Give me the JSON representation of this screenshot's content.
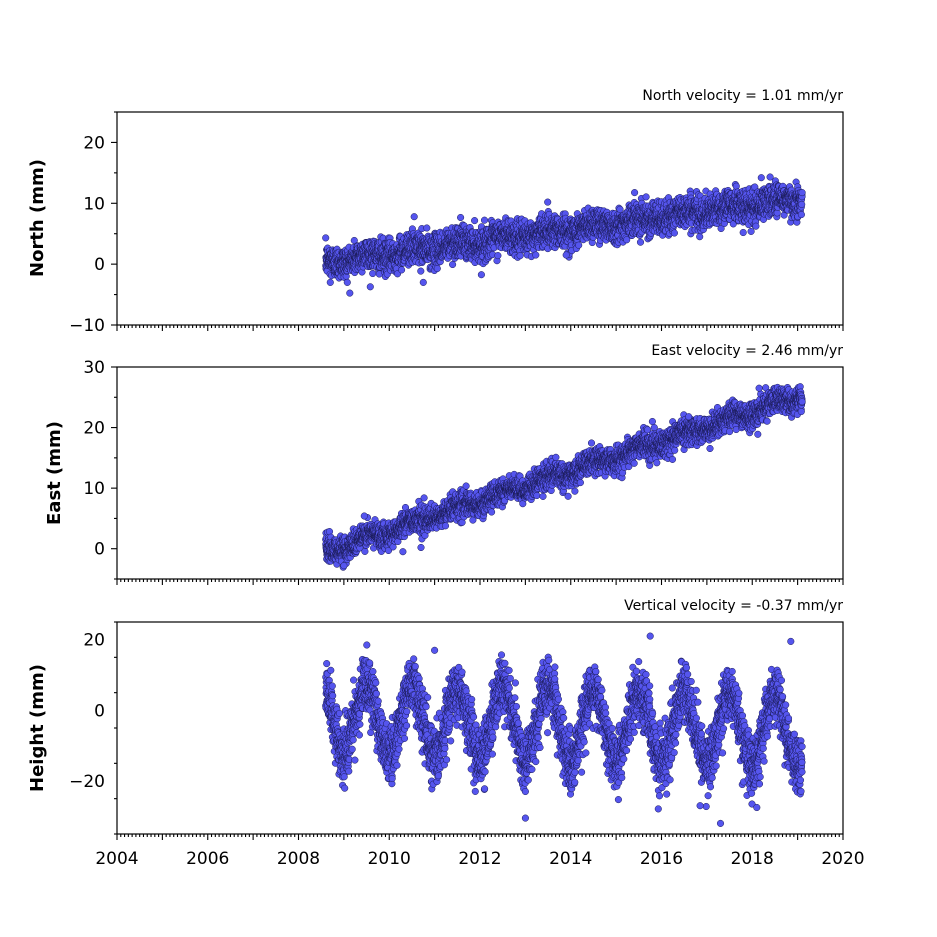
{
  "chart_data": [
    {
      "type": "scatter",
      "title": "North velocity = 1.01 mm/yr",
      "ylabel": "North (mm)",
      "xlim": [
        2004,
        2020
      ],
      "ylim": [
        -10,
        25
      ],
      "x_ticks": [
        "2004",
        "2006",
        "2008",
        "2010",
        "2012",
        "2014",
        "2016",
        "2018",
        "2020"
      ],
      "y_ticks": [
        20,
        10,
        0,
        -10
      ],
      "y_tick_labels": [
        "20",
        "10",
        "0",
        "−10"
      ],
      "model": {
        "start": 2008.6,
        "end": 2019.1,
        "intercept": 0.3,
        "velocity": 1.01,
        "seasonal_amplitude": 0.5,
        "scatter": 1.3
      },
      "outliers": [
        [
          2010.55,
          7.8
        ],
        [
          2010.75,
          -3.0
        ],
        [
          2013.9,
          1.5
        ],
        [
          2017.8,
          5.2
        ],
        [
          2018.2,
          14.2
        ],
        [
          2008.7,
          -3.0
        ]
      ],
      "color": "#5555ee"
    },
    {
      "type": "scatter",
      "title": "East velocity = 2.46 mm/yr",
      "ylabel": "East (mm)",
      "xlim": [
        2004,
        2020
      ],
      "ylim": [
        -5,
        30
      ],
      "x_ticks": [
        "2004",
        "2006",
        "2008",
        "2010",
        "2012",
        "2014",
        "2016",
        "2018",
        "2020"
      ],
      "y_ticks": [
        30,
        20,
        10,
        0
      ],
      "y_tick_labels": [
        "30",
        "20",
        "10",
        "0"
      ],
      "model": {
        "start": 2008.6,
        "end": 2019.1,
        "intercept": -0.5,
        "velocity": 2.46,
        "seasonal_amplitude": 0.6,
        "scatter": 1.0
      },
      "outliers": [
        [
          2009.45,
          5.4
        ],
        [
          2010.3,
          -0.5
        ],
        [
          2010.7,
          0.2
        ],
        [
          2015.8,
          21.0
        ],
        [
          2016.6,
          21.8
        ],
        [
          2018.15,
          26.5
        ],
        [
          2009.0,
          -2.8
        ]
      ],
      "color": "#5555ee"
    },
    {
      "type": "scatter",
      "title": "Vertical velocity = -0.37 mm/yr",
      "ylabel": "Height (mm)",
      "xlim": [
        2004,
        2020
      ],
      "ylim": [
        -35,
        25
      ],
      "x_ticks": [
        "2004",
        "2006",
        "2008",
        "2010",
        "2012",
        "2014",
        "2016",
        "2018",
        "2020"
      ],
      "y_ticks": [
        20,
        0,
        -20
      ],
      "y_tick_labels": [
        "20",
        "0",
        "−20"
      ],
      "model": {
        "start": 2008.6,
        "end": 2019.1,
        "intercept": -2.0,
        "velocity": -0.37,
        "seasonal_amplitude": 10.0,
        "scatter": 4.0
      },
      "outliers": [
        [
          2015.75,
          21.0
        ],
        [
          2018.85,
          19.5
        ],
        [
          2013.0,
          -30.5
        ],
        [
          2017.3,
          -32.0
        ],
        [
          2011.0,
          17.0
        ],
        [
          2016.85,
          -27.0
        ],
        [
          2018.1,
          -27.5
        ]
      ],
      "color": "#5555ee"
    }
  ]
}
